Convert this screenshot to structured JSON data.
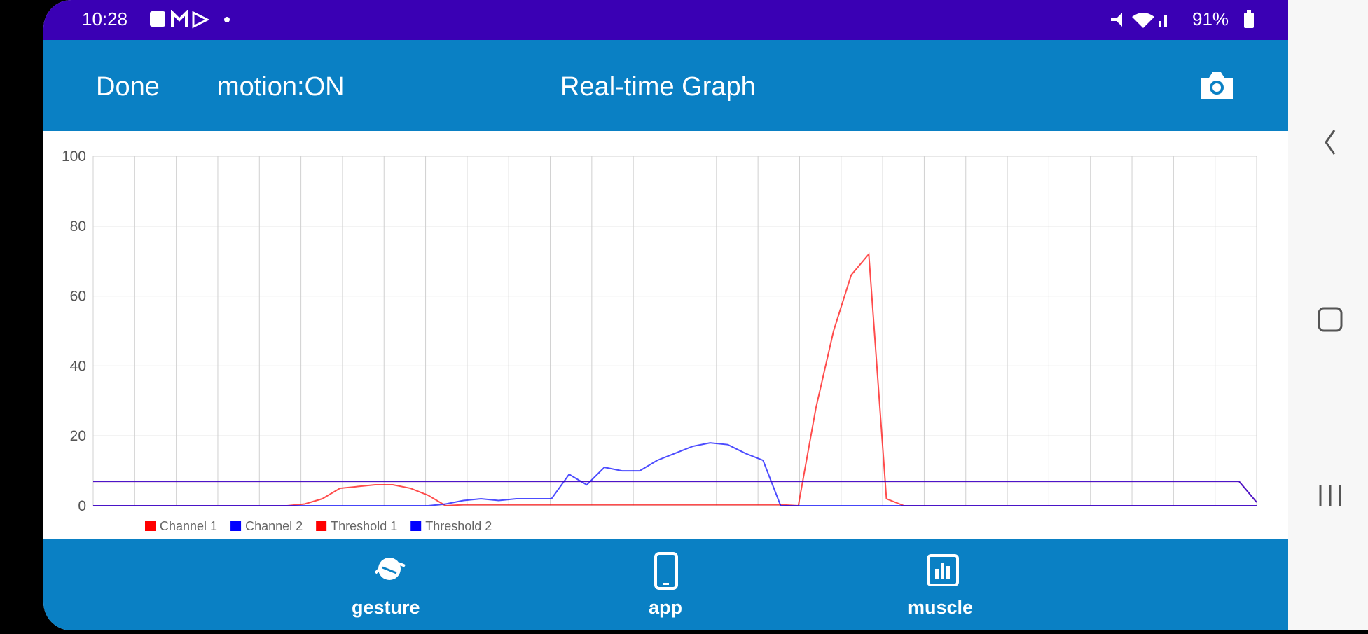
{
  "status_bar": {
    "time": "10:28",
    "battery": "91%"
  },
  "toolbar": {
    "done": "Done",
    "motion": "motion:ON",
    "title": "Real-time Graph"
  },
  "chart_data": {
    "type": "line",
    "ylim": [
      0,
      100
    ],
    "yticks": [
      0,
      20,
      40,
      60,
      80,
      100
    ],
    "grid": true,
    "series": [
      {
        "name": "Channel 1",
        "color": "#ff0000",
        "values": [
          0,
          0,
          0,
          0,
          0,
          0,
          0,
          0,
          0,
          0,
          0,
          0,
          0.5,
          2,
          5,
          5.5,
          6,
          6,
          5,
          3,
          0,
          0.3,
          0.3,
          0.3,
          0.3,
          0.3,
          0.3,
          0.3,
          0.3,
          0.3,
          0.3,
          0.3,
          0.3,
          0.3,
          0.3,
          0.3,
          0.3,
          0.3,
          0.3,
          0.3,
          0,
          28,
          50,
          66,
          72,
          2,
          0,
          0,
          0,
          0,
          0,
          0,
          0,
          0,
          0,
          0,
          0,
          0,
          0,
          0,
          0,
          0,
          0,
          0,
          0,
          0,
          0
        ]
      },
      {
        "name": "Channel 2",
        "color": "#0000ff",
        "values": [
          0,
          0,
          0,
          0,
          0,
          0,
          0,
          0,
          0,
          0,
          0,
          0,
          0,
          0,
          0,
          0,
          0,
          0,
          0,
          0,
          0.5,
          1.5,
          2,
          1.5,
          2,
          2,
          2,
          9,
          6,
          11,
          10,
          10,
          13,
          15,
          17,
          18,
          17.5,
          15,
          13,
          0,
          0,
          0,
          0,
          0,
          0,
          0,
          0,
          0,
          0,
          0,
          0,
          0,
          0,
          0,
          0,
          0,
          0,
          0,
          0,
          0,
          0,
          0,
          0,
          0,
          0,
          0,
          0
        ]
      },
      {
        "name": "Threshold 1",
        "color": "#ff0000",
        "values": [
          7,
          7,
          7,
          7,
          7,
          7,
          7,
          7,
          7,
          7,
          7,
          7,
          7,
          7,
          7,
          7,
          7,
          7,
          7,
          7,
          7,
          7,
          7,
          7,
          7,
          7,
          7,
          7,
          7,
          7,
          7,
          7,
          7,
          7,
          7,
          7,
          7,
          7,
          7,
          7,
          7,
          7,
          7,
          7,
          7,
          7,
          7,
          7,
          7,
          7,
          7,
          7,
          7,
          7,
          7,
          7,
          7,
          7,
          7,
          7,
          7,
          7,
          7,
          7,
          7,
          7,
          1
        ]
      },
      {
        "name": "Threshold 2",
        "color": "#0000ff",
        "values": [
          7,
          7,
          7,
          7,
          7,
          7,
          7,
          7,
          7,
          7,
          7,
          7,
          7,
          7,
          7,
          7,
          7,
          7,
          7,
          7,
          7,
          7,
          7,
          7,
          7,
          7,
          7,
          7,
          7,
          7,
          7,
          7,
          7,
          7,
          7,
          7,
          7,
          7,
          7,
          7,
          7,
          7,
          7,
          7,
          7,
          7,
          7,
          7,
          7,
          7,
          7,
          7,
          7,
          7,
          7,
          7,
          7,
          7,
          7,
          7,
          7,
          7,
          7,
          7,
          7,
          7,
          1
        ]
      }
    ]
  },
  "bottom_nav": {
    "items": [
      "gesture",
      "app",
      "muscle"
    ]
  }
}
